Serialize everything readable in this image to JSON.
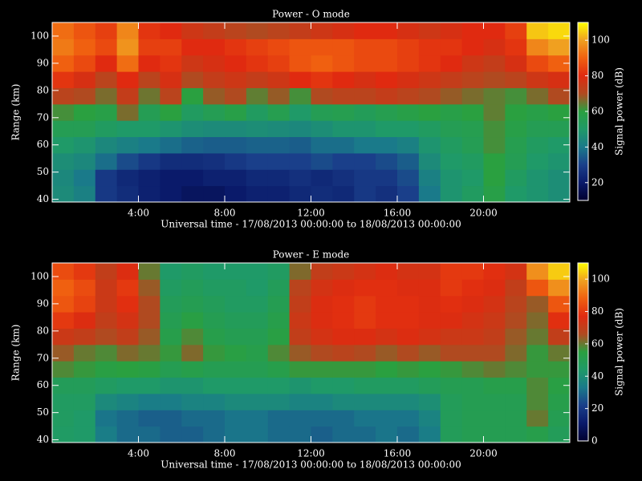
{
  "chart_data": [
    {
      "type": "heatmap",
      "title": "Power - O mode",
      "x_label": "Universal time - 17/08/2013 00:00:00 to 18/08/2013 00:00:00",
      "y_label": "Range (km)",
      "colorbar_label": "Signal power (dB)",
      "xlim": [
        0,
        24
      ],
      "ylim": [
        39,
        105
      ],
      "xticks": [
        {
          "value": 4,
          "label": "4:00"
        },
        {
          "value": 8,
          "label": "8:00"
        },
        {
          "value": 12,
          "label": "12:00"
        },
        {
          "value": 16,
          "label": "16:00"
        },
        {
          "value": 20,
          "label": "20:00"
        }
      ],
      "yticks": [
        40,
        50,
        60,
        70,
        80,
        90,
        100
      ],
      "zlim": [
        10,
        110
      ],
      "zticks": [
        20,
        40,
        60,
        80,
        100
      ],
      "colormap": [
        "#000030",
        "#0a1a6a",
        "#1a3f8a",
        "#1a7a8a",
        "#1f9a68",
        "#2aa040",
        "#b04a20",
        "#e02a10",
        "#f06010",
        "#f0a020",
        "#ffff00"
      ],
      "x": [
        0.5,
        1.5,
        2.5,
        3.5,
        4.5,
        5.5,
        6.5,
        7.5,
        8.5,
        9.5,
        10.5,
        11.5,
        12.5,
        13.5,
        14.5,
        15.5,
        16.5,
        17.5,
        18.5,
        19.5,
        20.5,
        21.5,
        22.5,
        23.5
      ],
      "y": [
        42,
        48,
        54,
        60,
        66,
        72,
        78,
        84,
        90,
        96,
        102
      ],
      "z": [
        [
          45,
          42,
          28,
          25,
          22,
          20,
          18,
          18,
          20,
          22,
          22,
          24,
          25,
          24,
          28,
          26,
          30,
          40,
          48,
          52,
          58,
          50,
          48,
          46
        ],
        [
          44,
          40,
          28,
          24,
          22,
          20,
          20,
          22,
          22,
          24,
          24,
          26,
          24,
          26,
          28,
          28,
          32,
          42,
          48,
          50,
          60,
          52,
          48,
          46
        ],
        [
          46,
          44,
          38,
          32,
          28,
          25,
          25,
          26,
          28,
          30,
          30,
          30,
          32,
          30,
          30,
          32,
          35,
          45,
          50,
          52,
          60,
          55,
          50,
          48
        ],
        [
          50,
          48,
          44,
          42,
          40,
          38,
          36,
          35,
          35,
          36,
          36,
          35,
          38,
          38,
          40,
          40,
          42,
          48,
          52,
          55,
          62,
          56,
          52,
          50
        ],
        [
          55,
          55,
          52,
          50,
          50,
          48,
          46,
          45,
          45,
          46,
          45,
          44,
          46,
          48,
          48,
          50,
          50,
          52,
          55,
          56,
          62,
          58,
          55,
          55
        ],
        [
          62,
          60,
          58,
          66,
          55,
          60,
          52,
          55,
          58,
          52,
          56,
          50,
          55,
          56,
          54,
          56,
          58,
          60,
          58,
          60,
          64,
          60,
          58,
          60
        ],
        [
          72,
          70,
          66,
          74,
          65,
          72,
          60,
          68,
          70,
          64,
          68,
          62,
          70,
          72,
          72,
          74,
          72,
          70,
          68,
          66,
          64,
          62,
          66,
          70
        ],
        [
          82,
          78,
          72,
          80,
          72,
          78,
          70,
          74,
          76,
          74,
          76,
          80,
          82,
          80,
          78,
          80,
          78,
          76,
          74,
          72,
          70,
          72,
          76,
          78
        ],
        [
          90,
          86,
          80,
          92,
          80,
          82,
          76,
          78,
          80,
          82,
          84,
          88,
          90,
          88,
          86,
          86,
          84,
          82,
          80,
          76,
          74,
          78,
          86,
          90
        ],
        [
          94,
          90,
          86,
          98,
          84,
          84,
          80,
          80,
          82,
          84,
          86,
          88,
          88,
          88,
          86,
          86,
          84,
          82,
          82,
          80,
          78,
          82,
          96,
          100
        ],
        [
          92,
          88,
          84,
          96,
          82,
          80,
          76,
          74,
          72,
          70,
          72,
          74,
          76,
          78,
          80,
          80,
          78,
          76,
          78,
          80,
          80,
          84,
          104,
          106
        ]
      ]
    },
    {
      "type": "heatmap",
      "title": "Power - E mode",
      "x_label": "Universal time - 17/08/2013 00:00:00 to 18/08/2013 00:00:00",
      "y_label": "Range (km)",
      "colorbar_label": "Signal power (dB)",
      "xlim": [
        0,
        24
      ],
      "ylim": [
        39,
        105
      ],
      "xticks": [
        {
          "value": 4,
          "label": "4:00"
        },
        {
          "value": 8,
          "label": "8:00"
        },
        {
          "value": 12,
          "label": "12:00"
        },
        {
          "value": 16,
          "label": "16:00"
        },
        {
          "value": 20,
          "label": "20:00"
        }
      ],
      "yticks": [
        40,
        50,
        60,
        70,
        80,
        90,
        100
      ],
      "zlim": [
        0,
        110
      ],
      "zticks": [
        0,
        20,
        40,
        60,
        80,
        100
      ],
      "colormap": [
        "#000030",
        "#0a1a6a",
        "#1a3f8a",
        "#1a7a8a",
        "#1f9a68",
        "#2aa040",
        "#b04a20",
        "#e02a10",
        "#f06010",
        "#f0a020",
        "#ffff00"
      ],
      "x": [
        0.5,
        1.5,
        2.5,
        3.5,
        4.5,
        5.5,
        6.5,
        7.5,
        8.5,
        9.5,
        10.5,
        11.5,
        12.5,
        13.5,
        14.5,
        15.5,
        16.5,
        17.5,
        18.5,
        19.5,
        20.5,
        21.5,
        22.5,
        23.5
      ],
      "y": [
        42,
        48,
        54,
        60,
        66,
        72,
        78,
        84,
        90,
        96,
        102
      ],
      "z": [
        [
          45,
          44,
          34,
          30,
          30,
          28,
          28,
          30,
          32,
          32,
          30,
          30,
          28,
          30,
          30,
          32,
          30,
          34,
          48,
          50,
          50,
          50,
          52,
          48
        ],
        [
          46,
          44,
          32,
          30,
          28,
          28,
          30,
          30,
          32,
          32,
          30,
          30,
          30,
          30,
          32,
          32,
          32,
          36,
          48,
          50,
          50,
          50,
          60,
          50
        ],
        [
          46,
          46,
          38,
          36,
          34,
          34,
          36,
          36,
          38,
          38,
          38,
          36,
          36,
          38,
          38,
          38,
          38,
          40,
          48,
          50,
          50,
          50,
          58,
          52
        ],
        [
          48,
          48,
          46,
          44,
          44,
          42,
          42,
          44,
          44,
          44,
          44,
          42,
          44,
          44,
          46,
          46,
          46,
          48,
          50,
          50,
          52,
          52,
          58,
          54
        ],
        [
          58,
          56,
          54,
          55,
          54,
          50,
          52,
          50,
          50,
          50,
          52,
          56,
          56,
          56,
          56,
          55,
          56,
          55,
          56,
          58,
          60,
          58,
          56,
          56
        ],
        [
          64,
          60,
          58,
          62,
          60,
          56,
          62,
          56,
          54,
          52,
          58,
          64,
          66,
          68,
          66,
          64,
          66,
          64,
          66,
          66,
          66,
          62,
          56,
          60
        ],
        [
          72,
          70,
          66,
          70,
          64,
          52,
          58,
          52,
          50,
          50,
          54,
          70,
          74,
          76,
          76,
          74,
          76,
          74,
          72,
          72,
          70,
          64,
          60,
          70
        ],
        [
          80,
          76,
          70,
          74,
          66,
          50,
          54,
          50,
          48,
          48,
          52,
          72,
          76,
          78,
          80,
          78,
          78,
          76,
          76,
          74,
          72,
          66,
          62,
          78
        ],
        [
          86,
          82,
          72,
          78,
          66,
          48,
          50,
          48,
          46,
          46,
          50,
          70,
          76,
          78,
          80,
          78,
          78,
          76,
          78,
          76,
          74,
          68,
          64,
          86
        ],
        [
          88,
          84,
          72,
          80,
          64,
          46,
          48,
          46,
          46,
          44,
          48,
          68,
          74,
          76,
          78,
          78,
          76,
          76,
          80,
          78,
          76,
          70,
          86,
          96
        ],
        [
          84,
          80,
          70,
          76,
          60,
          44,
          46,
          44,
          44,
          44,
          46,
          62,
          70,
          72,
          74,
          76,
          74,
          74,
          80,
          80,
          78,
          74,
          96,
          104
        ]
      ]
    }
  ]
}
